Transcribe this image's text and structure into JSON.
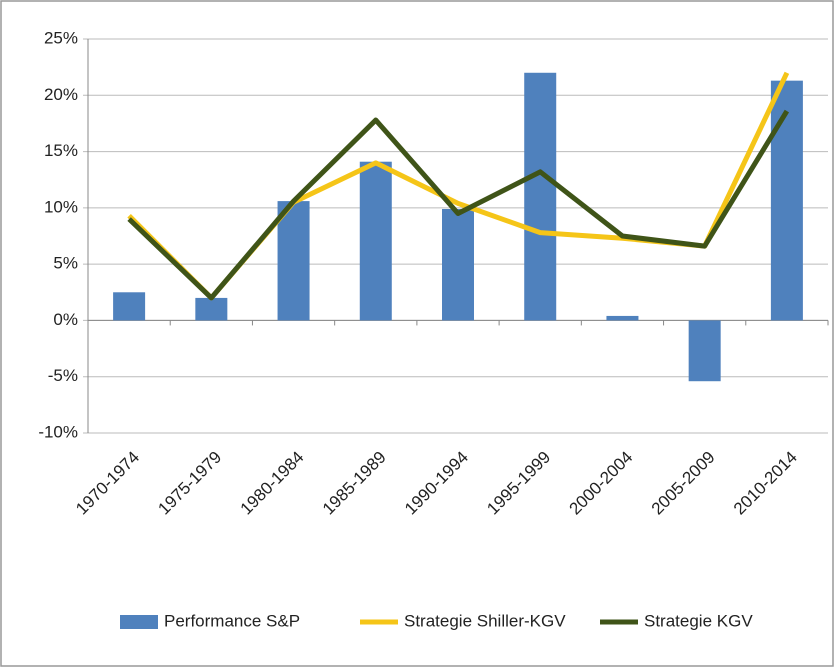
{
  "chart_data": {
    "type": "bar",
    "categories": [
      "1970-1974",
      "1975-1979",
      "1980-1984",
      "1985-1989",
      "1990-1994",
      "1995-1999",
      "2000-2004",
      "2005-2009",
      "2010-2014"
    ],
    "series": [
      {
        "name": "Performance S&P",
        "type": "bar",
        "color": "#4f81bd",
        "values": [
          2.5,
          2.0,
          10.6,
          14.1,
          9.9,
          22.0,
          0.4,
          -5.4,
          21.3
        ]
      },
      {
        "name": "Strategie Shiller-KGV",
        "type": "line",
        "color": "#f5c518",
        "values": [
          9.3,
          2.0,
          10.5,
          14.0,
          10.4,
          7.8,
          7.3,
          6.6,
          22.0
        ]
      },
      {
        "name": "Strategie KGV",
        "type": "line",
        "color": "#3f5418",
        "values": [
          9.0,
          2.0,
          10.6,
          17.8,
          9.5,
          13.2,
          7.5,
          6.6,
          18.6
        ]
      }
    ],
    "ylim": [
      -10,
      25
    ],
    "yticks": [
      {
        "value": -10,
        "label": "-10%"
      },
      {
        "value": -5,
        "label": "-5%"
      },
      {
        "value": 0,
        "label": "0%"
      },
      {
        "value": 5,
        "label": "5%"
      },
      {
        "value": 10,
        "label": "10%"
      },
      {
        "value": 15,
        "label": "15%"
      },
      {
        "value": 20,
        "label": "20%"
      },
      {
        "value": 25,
        "label": "25%"
      }
    ],
    "grid": true,
    "legend": "bottom"
  }
}
